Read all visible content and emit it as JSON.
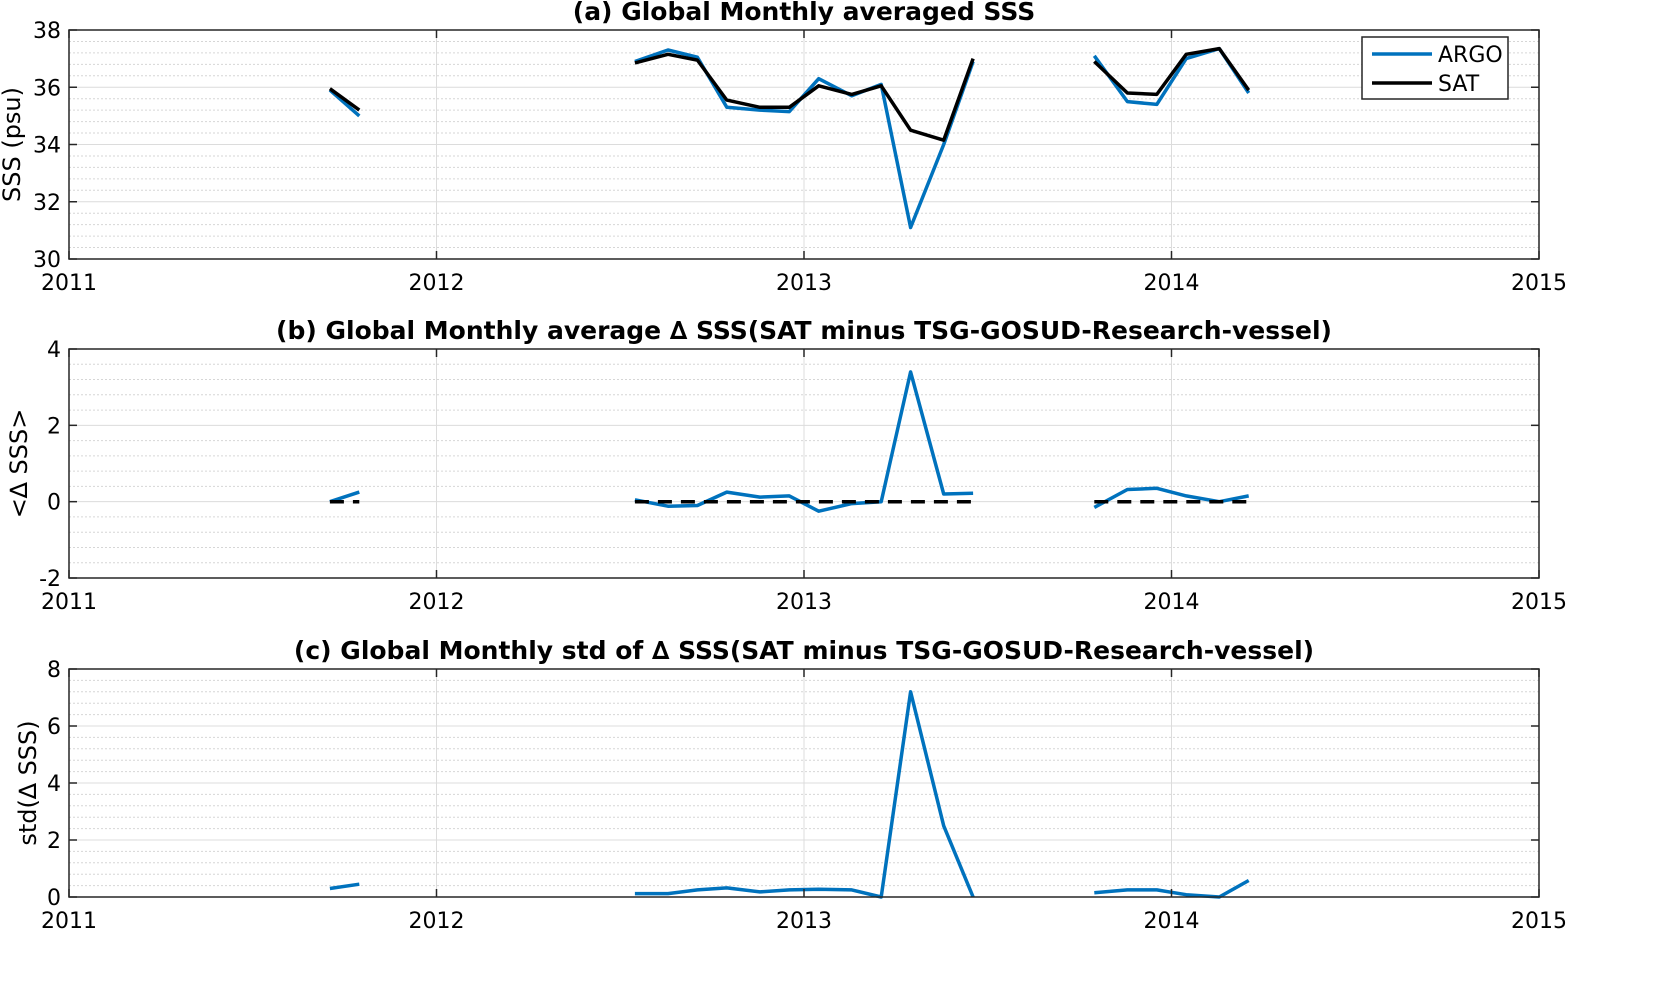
{
  "chart_data": [
    {
      "type": "line",
      "title": "(a) Global Monthly averaged SSS",
      "ylabel": "SSS (psu)",
      "xlabel": "",
      "xlim": [
        2011,
        2015
      ],
      "ylim": [
        30,
        38
      ],
      "xticks": [
        2011,
        2012,
        2013,
        2014,
        2015
      ],
      "yticks": [
        30,
        32,
        34,
        36,
        38
      ],
      "grid": true,
      "legend": "top-right",
      "colors": {
        "ARGO": "#0072BD",
        "SAT": "#000000"
      },
      "series": [
        {
          "name": "ARGO",
          "color": "#0072BD",
          "segments": [
            {
              "x": [
                2011.71,
                2011.79
              ],
              "y": [
                35.9,
                35.0
              ]
            },
            {
              "x": [
                2012.54,
                2012.63,
                2012.71,
                2012.79,
                2012.88,
                2012.96,
                2013.04,
                2013.13,
                2013.21,
                2013.29,
                2013.38,
                2013.46
              ],
              "y": [
                36.9,
                37.3,
                37.05,
                35.3,
                35.2,
                35.15,
                36.3,
                35.7,
                36.1,
                31.1,
                34.0,
                36.9
              ]
            },
            {
              "x": [
                2013.79,
                2013.88,
                2013.96,
                2014.04,
                2014.13,
                2014.21
              ],
              "y": [
                37.1,
                35.5,
                35.4,
                37.0,
                37.35,
                35.8
              ]
            }
          ]
        },
        {
          "name": "SAT",
          "color": "#000000",
          "segments": [
            {
              "x": [
                2011.71,
                2011.79
              ],
              "y": [
                35.95,
                35.2
              ]
            },
            {
              "x": [
                2012.54,
                2012.63,
                2012.71,
                2012.79,
                2012.88,
                2012.96,
                2013.04,
                2013.13,
                2013.21,
                2013.29,
                2013.38,
                2013.46
              ],
              "y": [
                36.85,
                37.15,
                36.95,
                35.55,
                35.3,
                35.3,
                36.05,
                35.75,
                36.05,
                34.5,
                34.15,
                37.0
              ]
            },
            {
              "x": [
                2013.79,
                2013.88,
                2013.96,
                2014.04,
                2014.13,
                2014.21
              ],
              "y": [
                36.9,
                35.8,
                35.75,
                37.15,
                37.35,
                35.9
              ]
            }
          ]
        }
      ]
    },
    {
      "type": "line",
      "title": "(b) Global Monthly average ∆ SSS(SAT minus TSG-GOSUD-Research-vessel)",
      "ylabel": "<∆ SSS>",
      "xlabel": "",
      "xlim": [
        2011,
        2015
      ],
      "ylim": [
        -2,
        4
      ],
      "xticks": [
        2011,
        2012,
        2013,
        2014,
        2015
      ],
      "yticks": [
        -2,
        0,
        2,
        4
      ],
      "grid": true,
      "series": [
        {
          "color": "#0072BD",
          "segments": [
            {
              "x": [
                2011.71,
                2011.79
              ],
              "y": [
                0.0,
                0.25
              ]
            },
            {
              "x": [
                2012.54,
                2012.63,
                2012.71,
                2012.79,
                2012.88,
                2012.96,
                2013.04,
                2013.13,
                2013.21,
                2013.29,
                2013.38,
                2013.46
              ],
              "y": [
                0.05,
                -0.12,
                -0.1,
                0.25,
                0.12,
                0.15,
                -0.25,
                -0.05,
                0.0,
                3.4,
                0.2,
                0.22
              ]
            },
            {
              "x": [
                2013.79,
                2013.88,
                2013.96,
                2014.04,
                2014.13,
                2014.21
              ],
              "y": [
                -0.15,
                0.32,
                0.35,
                0.15,
                0.0,
                0.15
              ]
            }
          ]
        },
        {
          "color": "#000000",
          "style": "dashed",
          "segments": [
            {
              "x": [
                2011.71,
                2011.79
              ],
              "y": [
                0,
                0
              ]
            },
            {
              "x": [
                2012.54,
                2013.46
              ],
              "y": [
                0,
                0
              ]
            },
            {
              "x": [
                2013.79,
                2014.21
              ],
              "y": [
                0,
                0
              ]
            }
          ]
        }
      ]
    },
    {
      "type": "line",
      "title": "(c) Global Monthly std of ∆ SSS(SAT minus TSG-GOSUD-Research-vessel)",
      "ylabel": "std(∆ SSS)",
      "xlabel": "",
      "xlim": [
        2011,
        2015
      ],
      "ylim": [
        0,
        8
      ],
      "xticks": [
        2011,
        2012,
        2013,
        2014,
        2015
      ],
      "yticks": [
        0,
        2,
        4,
        6,
        8
      ],
      "grid": true,
      "series": [
        {
          "color": "#0072BD",
          "segments": [
            {
              "x": [
                2011.71,
                2011.79
              ],
              "y": [
                0.3,
                0.45
              ]
            },
            {
              "x": [
                2012.54,
                2012.63,
                2012.71,
                2012.79,
                2012.88,
                2012.96,
                2013.04,
                2013.13,
                2013.21,
                2013.29,
                2013.38,
                2013.46
              ],
              "y": [
                0.12,
                0.12,
                0.25,
                0.32,
                0.18,
                0.25,
                0.27,
                0.25,
                0.0,
                7.2,
                2.5,
                0.0
              ]
            },
            {
              "x": [
                2013.79,
                2013.88,
                2013.96,
                2014.04,
                2014.13,
                2014.21
              ],
              "y": [
                0.15,
                0.25,
                0.25,
                0.08,
                0.0,
                0.58
              ]
            }
          ]
        }
      ]
    }
  ]
}
